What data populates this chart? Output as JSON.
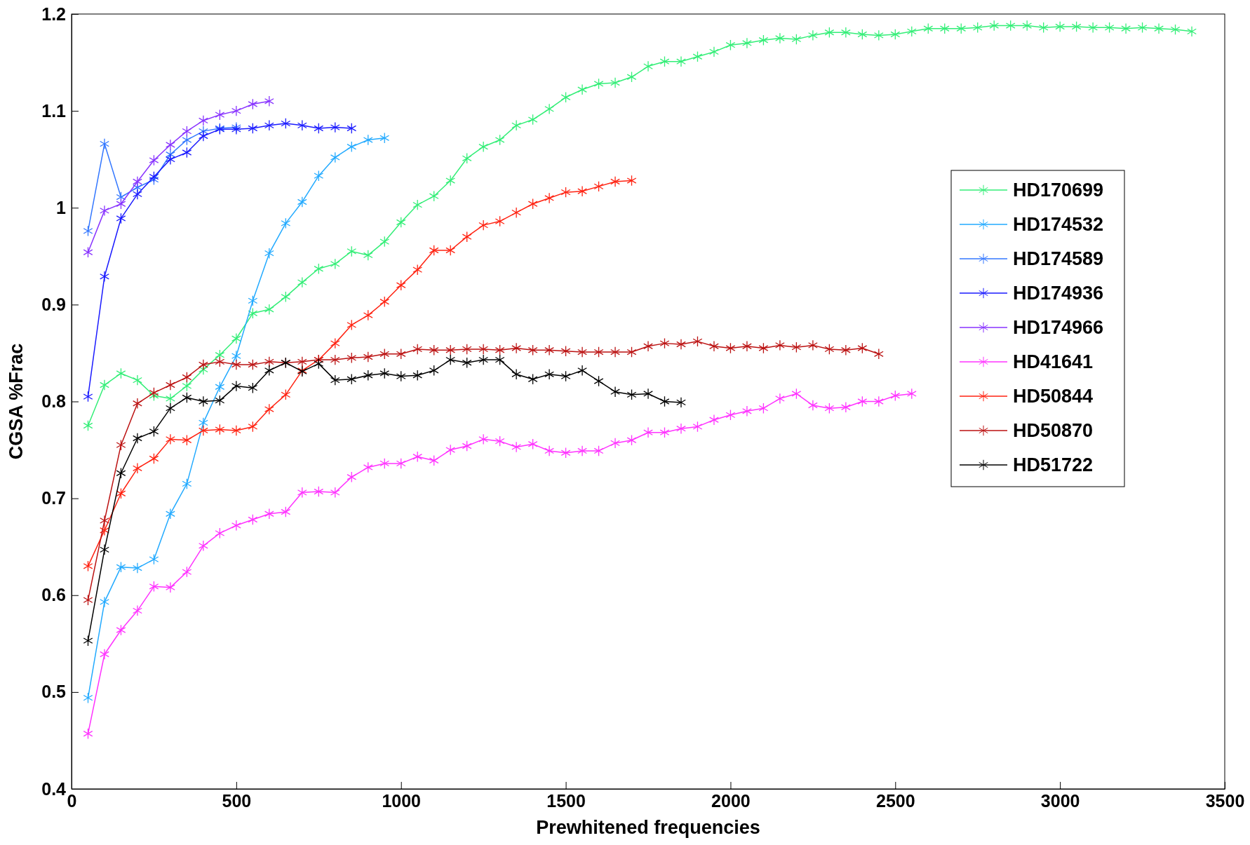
{
  "chart_data": {
    "type": "line",
    "xlabel": "Prewhitened frequencies",
    "ylabel": "CGSA %Frac",
    "xlim": [
      0,
      3500
    ],
    "xticks": [
      0,
      500,
      1000,
      1500,
      2000,
      2500,
      3000,
      3500
    ],
    "ylim": [
      0.4,
      1.2
    ],
    "yticks": [
      0.4,
      0.5,
      0.6,
      0.7,
      0.8,
      0.9,
      1,
      1.1,
      1.2
    ],
    "legend": "right",
    "marker": "cross",
    "grid": false,
    "series": [
      {
        "name": "HD170699",
        "color": "#33ee77",
        "x": [
          50,
          100,
          150,
          200,
          250,
          300,
          350,
          400,
          450,
          500,
          550,
          600,
          650,
          700,
          750,
          800,
          850,
          900,
          950,
          1000,
          1050,
          1100,
          1150,
          1200,
          1250,
          1300,
          1350,
          1400,
          1450,
          1500,
          1550,
          1600,
          1650,
          1700,
          1750,
          1800,
          1850,
          1900,
          1950,
          2000,
          2050,
          2100,
          2150,
          2200,
          2250,
          2300,
          2350,
          2400,
          2450,
          2500,
          2550,
          2600,
          2650,
          2700,
          2750,
          2800,
          2850,
          2900,
          2950,
          3000,
          3050,
          3100,
          3150,
          3200,
          3250,
          3300,
          3350,
          3400
        ],
        "values": [
          0.775,
          0.817,
          0.829,
          0.822,
          0.806,
          0.803,
          0.816,
          0.833,
          0.848,
          0.865,
          0.891,
          0.895,
          0.908,
          0.923,
          0.937,
          0.942,
          0.955,
          0.951,
          0.965,
          0.985,
          1.003,
          1.012,
          1.028,
          1.051,
          1.063,
          1.07,
          1.085,
          1.091,
          1.102,
          1.114,
          1.122,
          1.128,
          1.129,
          1.135,
          1.146,
          1.151,
          1.151,
          1.156,
          1.161,
          1.168,
          1.17,
          1.173,
          1.175,
          1.174,
          1.178,
          1.181,
          1.181,
          1.179,
          1.178,
          1.179,
          1.182,
          1.185,
          1.185,
          1.185,
          1.186,
          1.188,
          1.188,
          1.188,
          1.186,
          1.187,
          1.187,
          1.186,
          1.186,
          1.185,
          1.186,
          1.185,
          1.184,
          1.182
        ]
      },
      {
        "name": "HD174532",
        "color": "#22aaff",
        "x": [
          50,
          100,
          150,
          200,
          250,
          300,
          350,
          400,
          450,
          500,
          550,
          600,
          650,
          700,
          750,
          800,
          850,
          900,
          950
        ],
        "values": [
          0.494,
          0.593,
          0.629,
          0.628,
          0.637,
          0.684,
          0.715,
          0.778,
          0.815,
          0.847,
          0.904,
          0.953,
          0.984,
          1.006,
          1.033,
          1.052,
          1.063,
          1.07,
          1.072
        ]
      },
      {
        "name": "HD174589",
        "color": "#3377ff",
        "x": [
          50,
          100,
          150,
          200,
          250,
          300,
          350,
          400,
          450,
          500
        ],
        "values": [
          0.976,
          1.066,
          1.011,
          1.021,
          1.029,
          1.055,
          1.07,
          1.079,
          1.082,
          1.083
        ]
      },
      {
        "name": "HD174936",
        "color": "#1a1aff",
        "x": [
          50,
          100,
          150,
          200,
          250,
          300,
          350,
          400,
          450,
          500,
          550,
          600,
          650,
          700,
          750,
          800,
          850
        ],
        "values": [
          0.805,
          0.929,
          0.989,
          1.014,
          1.032,
          1.05,
          1.057,
          1.074,
          1.081,
          1.081,
          1.082,
          1.085,
          1.087,
          1.085,
          1.082,
          1.083,
          1.082
        ]
      },
      {
        "name": "HD174966",
        "color": "#8833ff",
        "x": [
          50,
          100,
          150,
          200,
          250,
          300,
          350,
          400,
          450,
          500,
          550,
          600
        ],
        "values": [
          0.954,
          0.997,
          1.004,
          1.027,
          1.049,
          1.065,
          1.079,
          1.09,
          1.096,
          1.1,
          1.107,
          1.11
        ]
      },
      {
        "name": "HD41641",
        "color": "#ff33ff",
        "x": [
          50,
          100,
          150,
          200,
          250,
          300,
          350,
          400,
          450,
          500,
          550,
          600,
          650,
          700,
          750,
          800,
          850,
          900,
          950,
          1000,
          1050,
          1100,
          1150,
          1200,
          1250,
          1300,
          1350,
          1400,
          1450,
          1500,
          1550,
          1600,
          1650,
          1700,
          1750,
          1800,
          1850,
          1900,
          1950,
          2000,
          2050,
          2100,
          2150,
          2200,
          2250,
          2300,
          2350,
          2400,
          2450,
          2500,
          2550
        ],
        "values": [
          0.457,
          0.539,
          0.564,
          0.584,
          0.609,
          0.608,
          0.624,
          0.651,
          0.664,
          0.672,
          0.678,
          0.684,
          0.686,
          0.706,
          0.707,
          0.706,
          0.722,
          0.732,
          0.736,
          0.736,
          0.743,
          0.739,
          0.75,
          0.754,
          0.761,
          0.759,
          0.753,
          0.756,
          0.749,
          0.747,
          0.749,
          0.749,
          0.757,
          0.76,
          0.768,
          0.768,
          0.772,
          0.774,
          0.781,
          0.786,
          0.79,
          0.793,
          0.803,
          0.808,
          0.796,
          0.793,
          0.794,
          0.8,
          0.8,
          0.806,
          0.808
        ]
      },
      {
        "name": "HD50844",
        "color": "#ff2211",
        "x": [
          50,
          100,
          150,
          200,
          250,
          300,
          350,
          400,
          450,
          500,
          550,
          600,
          650,
          700,
          750,
          800,
          850,
          900,
          950,
          1000,
          1050,
          1100,
          1150,
          1200,
          1250,
          1300,
          1350,
          1400,
          1450,
          1500,
          1550,
          1600,
          1650,
          1700
        ],
        "values": [
          0.63,
          0.667,
          0.705,
          0.731,
          0.741,
          0.761,
          0.76,
          0.77,
          0.771,
          0.77,
          0.774,
          0.792,
          0.807,
          0.832,
          0.843,
          0.86,
          0.879,
          0.889,
          0.903,
          0.92,
          0.936,
          0.956,
          0.956,
          0.97,
          0.982,
          0.986,
          0.995,
          1.004,
          1.01,
          1.016,
          1.017,
          1.022,
          1.027,
          1.028
        ]
      },
      {
        "name": "HD50870",
        "color": "#bb1111",
        "x": [
          50,
          100,
          150,
          200,
          250,
          300,
          350,
          400,
          450,
          500,
          550,
          600,
          650,
          700,
          750,
          800,
          850,
          900,
          950,
          1000,
          1050,
          1100,
          1150,
          1200,
          1250,
          1300,
          1350,
          1400,
          1450,
          1500,
          1550,
          1600,
          1650,
          1700,
          1750,
          1800,
          1850,
          1900,
          1950,
          2000,
          2050,
          2100,
          2150,
          2200,
          2250,
          2300,
          2350,
          2400,
          2450
        ],
        "values": [
          0.595,
          0.677,
          0.755,
          0.798,
          0.809,
          0.817,
          0.825,
          0.838,
          0.841,
          0.838,
          0.838,
          0.841,
          0.84,
          0.841,
          0.843,
          0.843,
          0.845,
          0.846,
          0.849,
          0.849,
          0.854,
          0.853,
          0.853,
          0.854,
          0.854,
          0.853,
          0.855,
          0.853,
          0.853,
          0.852,
          0.851,
          0.851,
          0.851,
          0.851,
          0.857,
          0.86,
          0.859,
          0.862,
          0.857,
          0.855,
          0.857,
          0.855,
          0.858,
          0.856,
          0.858,
          0.854,
          0.853,
          0.855,
          0.849
        ]
      },
      {
        "name": "HD51722",
        "color": "#000000",
        "x": [
          50,
          100,
          150,
          200,
          250,
          300,
          350,
          400,
          450,
          500,
          550,
          600,
          650,
          700,
          750,
          800,
          850,
          900,
          950,
          1000,
          1050,
          1100,
          1150,
          1200,
          1250,
          1300,
          1350,
          1400,
          1450,
          1500,
          1550,
          1600,
          1650,
          1700,
          1750,
          1800,
          1850
        ],
        "values": [
          0.553,
          0.647,
          0.726,
          0.762,
          0.769,
          0.793,
          0.804,
          0.8,
          0.801,
          0.816,
          0.814,
          0.832,
          0.84,
          0.831,
          0.839,
          0.822,
          0.823,
          0.827,
          0.829,
          0.826,
          0.827,
          0.832,
          0.843,
          0.84,
          0.843,
          0.843,
          0.828,
          0.823,
          0.828,
          0.826,
          0.832,
          0.821,
          0.81,
          0.807,
          0.808,
          0.8,
          0.799
        ]
      }
    ]
  }
}
